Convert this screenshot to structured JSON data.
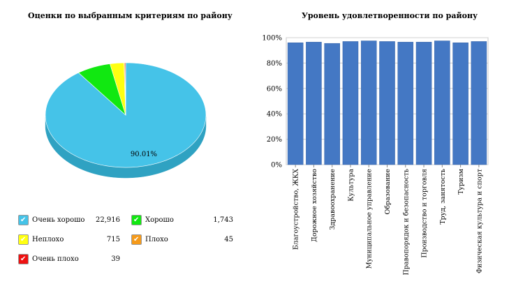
{
  "chart_data": [
    {
      "type": "pie",
      "title": "Оценки по выбранным критериям по району",
      "slices": [
        {
          "label": "Очень хорошо",
          "value": 22916,
          "color": "#45c3e8",
          "side_color": "#2fa2c2"
        },
        {
          "label": "Хорошо",
          "value": 1743,
          "color": "#11e811",
          "side_color": "#0cb30c"
        },
        {
          "label": "Неплохо",
          "value": 715,
          "color": "#ffff11",
          "side_color": "#c9c90c"
        },
        {
          "label": "Плохо",
          "value": 45,
          "color": "#f59a1a",
          "side_color": "#c07512"
        },
        {
          "label": "Очень плохо",
          "value": 39,
          "color": "#ee1111",
          "side_color": "#b30c0c"
        }
      ],
      "data_labels": [
        "90.01%"
      ]
    },
    {
      "type": "bar",
      "title": "Уровень удовлетворенности по району",
      "categories": [
        "Благоустройство, ЖКХ",
        "Дорожное хозяйство",
        "Здравоохранение",
        "Культура",
        "Муниципальное управление",
        "Образование",
        "Правопорядок и безопасность",
        "Производство и торговля",
        "Труд, занятость",
        "Туризм",
        "Физическая культура и спорт"
      ],
      "values": [
        96,
        96.5,
        95.5,
        97,
        97.5,
        97,
        96.5,
        96.5,
        97.5,
        96,
        97
      ],
      "ylim": [
        0,
        100
      ],
      "yticks": [
        "0%",
        "20%",
        "40%",
        "60%",
        "80%",
        "100%"
      ],
      "grid": true,
      "bar_color": "#4478c4"
    }
  ],
  "legend_values": [
    "22,916",
    "1,743",
    "715",
    "45",
    "39"
  ]
}
